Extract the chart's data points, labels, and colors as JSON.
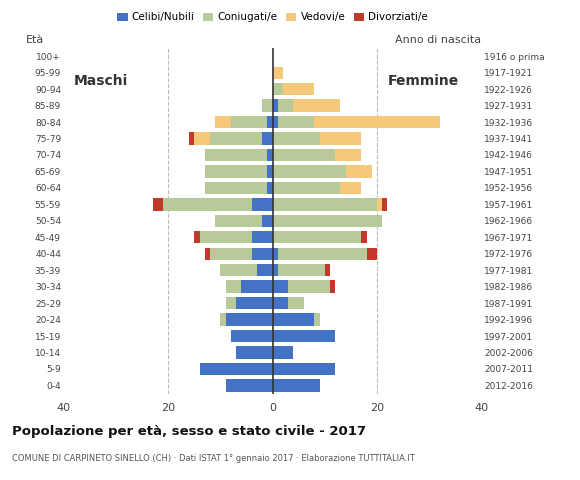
{
  "age_groups": [
    "0-4",
    "5-9",
    "10-14",
    "15-19",
    "20-24",
    "25-29",
    "30-34",
    "35-39",
    "40-44",
    "45-49",
    "50-54",
    "55-59",
    "60-64",
    "65-69",
    "70-74",
    "75-79",
    "80-84",
    "85-89",
    "90-94",
    "95-99",
    "100+"
  ],
  "birth_years": [
    "2012-2016",
    "2007-2011",
    "2002-2006",
    "1997-2001",
    "1992-1996",
    "1987-1991",
    "1982-1986",
    "1977-1981",
    "1972-1976",
    "1967-1971",
    "1962-1966",
    "1957-1961",
    "1952-1956",
    "1947-1951",
    "1942-1946",
    "1937-1941",
    "1932-1936",
    "1927-1931",
    "1922-1926",
    "1917-1921",
    "1916 o prima"
  ],
  "male": {
    "celibe": [
      9,
      14,
      7,
      8,
      9,
      7,
      6,
      3,
      4,
      4,
      2,
      4,
      1,
      1,
      1,
      2,
      1,
      0,
      0,
      0,
      0
    ],
    "coniugato": [
      0,
      0,
      0,
      0,
      1,
      2,
      3,
      7,
      8,
      10,
      9,
      17,
      12,
      12,
      12,
      10,
      7,
      2,
      0,
      0,
      0
    ],
    "vedovo": [
      0,
      0,
      0,
      0,
      0,
      0,
      0,
      0,
      0,
      0,
      0,
      0,
      0,
      0,
      0,
      3,
      3,
      0,
      0,
      0,
      0
    ],
    "divorziato": [
      0,
      0,
      0,
      0,
      0,
      0,
      0,
      0,
      1,
      1,
      0,
      2,
      0,
      0,
      0,
      1,
      0,
      0,
      0,
      0,
      0
    ]
  },
  "female": {
    "celibe": [
      9,
      12,
      4,
      12,
      8,
      3,
      3,
      1,
      1,
      0,
      0,
      0,
      0,
      0,
      0,
      0,
      1,
      1,
      0,
      0,
      0
    ],
    "coniugato": [
      0,
      0,
      0,
      0,
      1,
      3,
      8,
      9,
      17,
      17,
      21,
      20,
      13,
      14,
      12,
      9,
      7,
      3,
      2,
      0,
      0
    ],
    "vedovo": [
      0,
      0,
      0,
      0,
      0,
      0,
      0,
      0,
      0,
      0,
      0,
      1,
      4,
      5,
      5,
      8,
      24,
      9,
      6,
      2,
      0
    ],
    "divorziato": [
      0,
      0,
      0,
      0,
      0,
      0,
      1,
      1,
      2,
      1,
      0,
      1,
      0,
      0,
      0,
      0,
      0,
      0,
      0,
      0,
      0
    ]
  },
  "colors": {
    "celibe": "#4472c4",
    "coniugato": "#b8c99a",
    "vedovo": "#f5c87a",
    "divorziato": "#c0392b"
  },
  "legend_labels": [
    "Celibi/Nubili",
    "Coniugati/e",
    "Vedovi/e",
    "Divorziati/e"
  ],
  "title": "Popolazione per età, sesso e stato civile - 2017",
  "subtitle": "COMUNE DI CARPINETO SINELLO (CH) · Dati ISTAT 1° gennaio 2017 · Elaborazione TUTTITALIA.IT",
  "label_eta": "Età",
  "label_maschi": "Maschi",
  "label_femmine": "Femmine",
  "label_anno": "Anno di nascita",
  "xlim": 40,
  "bg_color": "#ffffff",
  "grid_color": "#bbbbbb"
}
